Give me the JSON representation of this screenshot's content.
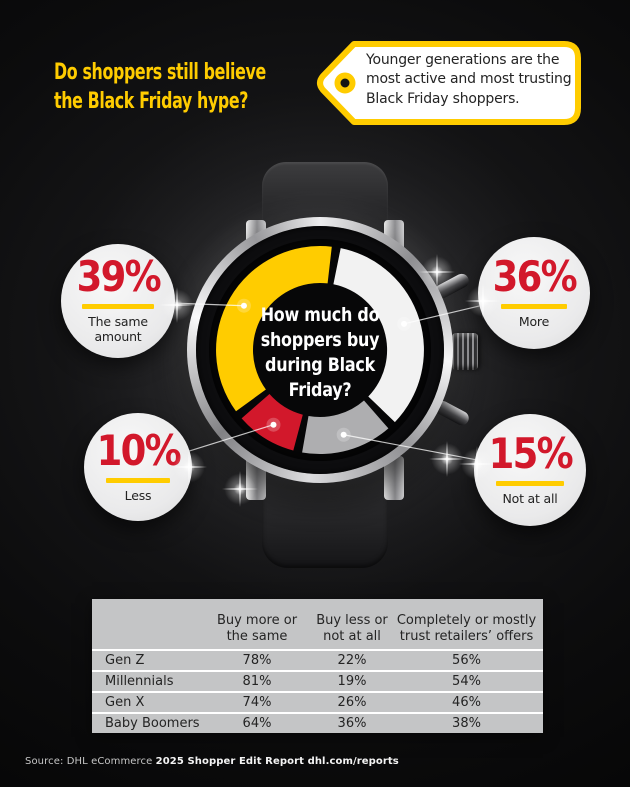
{
  "header": {
    "title": "Do shoppers still believe\nthe Black Friday hype?",
    "tag_note": "Younger generations are the\nmost active and most trusting\nBlack Friday shoppers."
  },
  "colors": {
    "brand_yellow": "#FFCC00",
    "brand_red": "#D2182B",
    "bubble_fill": "#ECECEC",
    "table_bg": "#C4C5C6",
    "background": "#0C0C0D"
  },
  "chart_data": [
    {
      "type": "pie",
      "title": "How much do\nshoppers buy\nduring Black\nFriday?",
      "unit": "%",
      "legend_position": "callout-bubbles",
      "segments": [
        {
          "label": "More",
          "value": 36,
          "color": "#F2F2F2"
        },
        {
          "label": "Not at all",
          "value": 15,
          "color": "#AEAEB0"
        },
        {
          "label": "Less",
          "value": 10,
          "color": "#D2182B"
        },
        {
          "label": "The same amount",
          "value": 39,
          "color": "#FFCC00"
        }
      ],
      "callouts": [
        {
          "value": "39%",
          "label": "The same\namount"
        },
        {
          "value": "36%",
          "label": "More"
        },
        {
          "value": "10%",
          "label": "Less"
        },
        {
          "value": "15%",
          "label": "Not at all"
        }
      ]
    },
    {
      "type": "table",
      "columns": [
        "",
        "Buy more or\nthe same",
        "Buy less or\nnot at all",
        "Completely or mostly\ntrust retailers’ offers"
      ],
      "rows": [
        {
          "label": "Gen Z",
          "values": [
            "78%",
            "22%",
            "56%"
          ]
        },
        {
          "label": "Millennials",
          "values": [
            "81%",
            "19%",
            "54%"
          ]
        },
        {
          "label": "Gen X",
          "values": [
            "74%",
            "26%",
            "46%"
          ]
        },
        {
          "label": "Baby Boomers",
          "values": [
            "64%",
            "36%",
            "38%"
          ]
        }
      ]
    }
  ],
  "footer": {
    "source_prefix": "Source: DHL eCommerce ",
    "source_bold": "2025 Shopper Edit Report dhl.com/reports"
  }
}
